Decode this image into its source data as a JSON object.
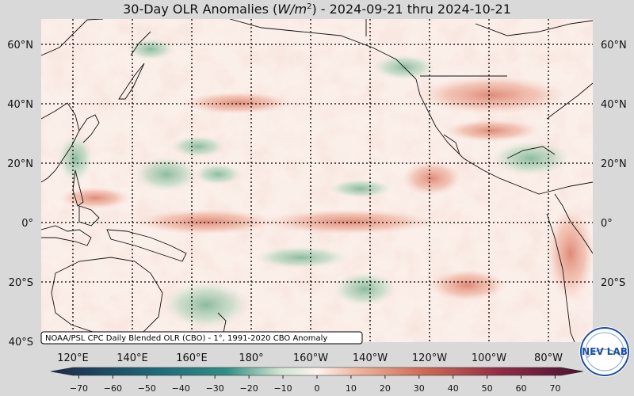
{
  "title": {
    "prefix": "30-Day OLR Anomalies (",
    "units_base": "W/m",
    "units_exp": "2",
    "suffix": ") - 2024-09-21 thru 2024-10-21"
  },
  "map": {
    "lon_ticks": [
      "120°E",
      "140°E",
      "160°E",
      "180°",
      "160°W",
      "140°W",
      "120°W",
      "100°W",
      "80°W"
    ],
    "lat_ticks": [
      "60°N",
      "40°N",
      "20°N",
      "0°",
      "20°S",
      "40°S"
    ],
    "attribution": "NOAA/PSL CPC Daily Blended OLR (CBO) - 1°, 1991-2020 CBO Anomaly"
  },
  "colorbar": {
    "min": -75,
    "max": 75,
    "ticks": [
      -70,
      -60,
      -50,
      -40,
      -30,
      -20,
      -10,
      0,
      10,
      20,
      30,
      40,
      50,
      60,
      70
    ],
    "colors": {
      "deep_negative": "#1c2a4a",
      "mid_negative": "#2f8f86",
      "light_negative": "#cfe3d1",
      "neutral": "#fdf3ee",
      "light_positive": "#f0b8a3",
      "mid_positive": "#cf6a55",
      "deep_positive": "#4a1232"
    }
  },
  "logo": {
    "text": "NEV LAB",
    "colors": {
      "ring": "#1e4fa0",
      "bg": "#ffffff"
    }
  }
}
